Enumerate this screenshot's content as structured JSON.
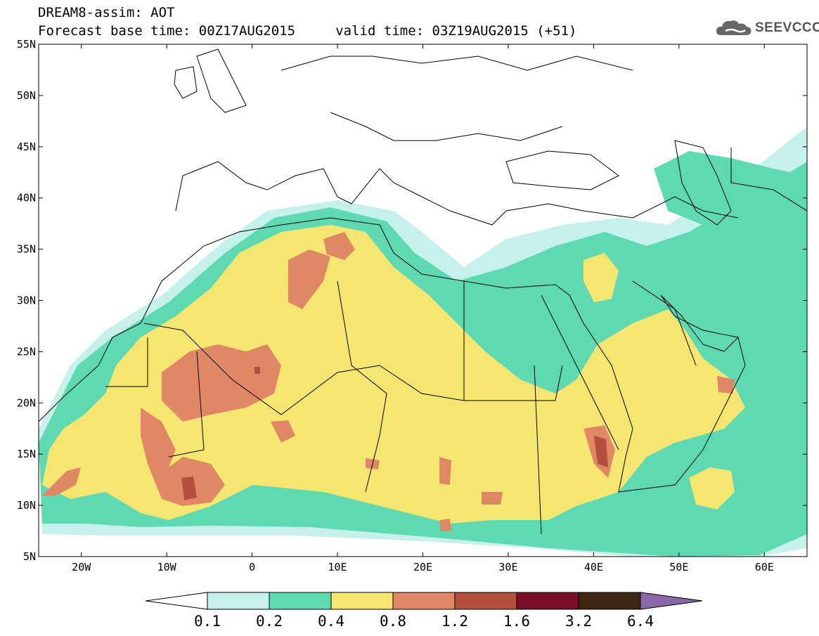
{
  "header": {
    "title_line1": "DREAM8-assim: AOT",
    "title_line2": "Forecast base time: 00Z17AUG2015     valid time: 03Z19AUG2015 (+51)",
    "brand": "SEEVCCC"
  },
  "map": {
    "lon_range": [
      -25,
      65
    ],
    "lat_range": [
      5,
      55
    ],
    "lat_ticks": [
      "55N",
      "50N",
      "45N",
      "40N",
      "35N",
      "30N",
      "25N",
      "20N",
      "15N",
      "10N",
      "5N"
    ],
    "lon_ticks": [
      "20W",
      "10W",
      "0",
      "10E",
      "20E",
      "30E",
      "40E",
      "50E",
      "60E"
    ]
  },
  "colorbar": {
    "labels": [
      "0.1",
      "0.2",
      "0.4",
      "0.8",
      "1.2",
      "1.6",
      "3.2",
      "6.4"
    ],
    "colors": [
      "#ffffff",
      "#c6f0ea",
      "#5ed9b2",
      "#f5e571",
      "#e08766",
      "#b34f3f",
      "#7a0f2b",
      "#3d2614",
      "#8a68a8"
    ]
  },
  "palette": {
    "land_border": "#000000",
    "sea": "#ffffff"
  }
}
